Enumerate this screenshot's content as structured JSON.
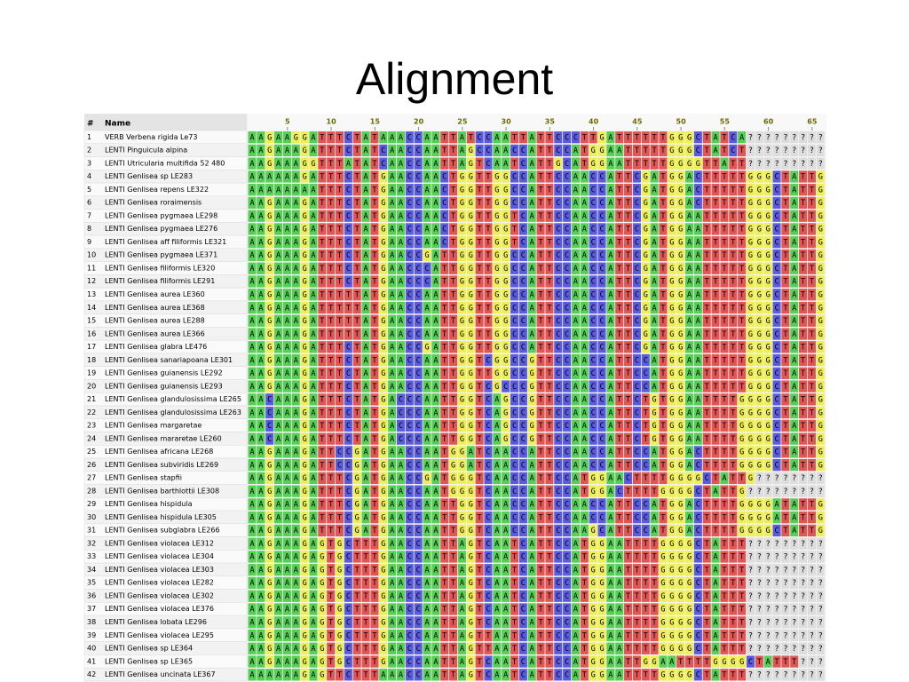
{
  "header": {
    "title": "Alignment"
  },
  "table": {
    "columns": [
      "#",
      "Name"
    ],
    "ruler": [
      5,
      10,
      15,
      20,
      25,
      30,
      35,
      40,
      45,
      50,
      55,
      60,
      65
    ],
    "rows": [
      {
        "num": "1",
        "name": "VERB Verbena rigida Le73",
        "sequence": "AAGAAGGATTTCTATAAACCAATTATCCAATTATTCCCTTGATTTTTTGGGCTATCA?????????"
      },
      {
        "num": "2",
        "name": "LENTI Pinguicula alpina",
        "sequence": "AAGAAAGATTTCTATCAACCAATTAGCCAACCATTCCATGGAATTTTTGGGCTATCT?????????"
      },
      {
        "num": "3",
        "name": "LENTI Utricularia multifida 52 480",
        "sequence": "AAGAAAGGTTTATATCAACCAATTAGTCAATCATTGCATGGAATTTTTGGGGTTATT?????????"
      },
      {
        "num": "4",
        "name": "LENTI Genlisea sp  LE283",
        "sequence": "AAAAAAGATTTCTATGAACCAACTGGTTGGCCATTCCAACCATTCGATGGACTTTTTGGGCTATTG"
      },
      {
        "num": "5",
        "name": "LENTI Genlisea repens LE322",
        "sequence": "AAAAAAAATTTCTATGAACCAACTGGTTGGCCATTCCAACCATTCGATGGACTTTTTGGGCTATTG"
      },
      {
        "num": "6",
        "name": "LENTI Genlisea roraimensis",
        "sequence": "AAGAAAGATTTCTATGAACCAACTGGTTGGCCATTCCAACCATTCGATGGACTTTTTGGGCTATTG"
      },
      {
        "num": "7",
        "name": "LENTI Genlisea pygmaea LE298",
        "sequence": "AAGAAAGATTTCTATGAACCAACTGGTTGGTCATTCCAACCATTCGATGGAATTTTTGGGCTATTG"
      },
      {
        "num": "8",
        "name": "LENTI Genlisea pygmaea LE276",
        "sequence": "AAGAAAGATTTCTATGAACCAACTGGTTGGTCATTCCAACCATTCGATGGAATTTTTGGGCTATTG"
      },
      {
        "num": "9",
        "name": "LENTI Genlisea aff  filiformis LE321",
        "sequence": "AAGAAAGATTTCTATGAACCAACTGGTTGGTCATTCCAACCATTCGATGGAATTTTTGGGCTATTG"
      },
      {
        "num": "10",
        "name": "LENTI Genlisea pygmaea LE371",
        "sequence": "AAGAAAGATTTCTATGAACCGATTGGTTGGCCATTCCAACCATTCGATGGAATTTTTGGGCTATTG"
      },
      {
        "num": "11",
        "name": "LENTI Genlisea filiformis LE320",
        "sequence": "AAGAAAGATTTCTATGAACCCATTGGTTGGCCATTCCAACCATTCGATGGAATTTTTGGGCTATTG"
      },
      {
        "num": "12",
        "name": "LENTI Genlisea filiformis LE291",
        "sequence": "AAGAAAGATTTCTATGAACCCATTGGTTGGCCATTCCAACCATTCGATGGAATTTTTGGGCTATTG"
      },
      {
        "num": "13",
        "name": "LENTI Genlisea aurea LE360",
        "sequence": "AAGAAAGATTTTTATGAACCAATTGGTTGGCCATTCCAACCATTCGATGGAATTTTTGGGCTATTG"
      },
      {
        "num": "14",
        "name": "LENTI Genlisea aurea LE368",
        "sequence": "AAGAAAGATTTTTATGAACCAATTGGTTGGCCATTCCAACCATTCGATGGAATTTTTGGGCTATTG"
      },
      {
        "num": "15",
        "name": "LENTI Genlisea aurea LE288",
        "sequence": "AAGAAAGATTTTTATGAACCAATTGGTTGGCCATTCCAACCATTCGATGGAATTTTTGGGCTATTG"
      },
      {
        "num": "16",
        "name": "LENTI Genlisea aurea LE366",
        "sequence": "AAGAAAGATTTTTATGAACCAATTGGTTGGCCATTCCAACCATTCGATGGAATTTTTGGGCTATTG"
      },
      {
        "num": "17",
        "name": "LENTI Genlisea glabra LE476",
        "sequence": "AAGAAAGATTTCTATGAACCGATTGGTTGGCCATTCCAACCATTCGATGGAATTTTTGGGCTATTG"
      },
      {
        "num": "18",
        "name": "LENTI Genlisea sanariapoana LE301",
        "sequence": "AAGAAAGATTTCTATGAACCAATTGGTCGGCCGTTCCAACCATTCCATGGAATTTTTGGGCTATTG"
      },
      {
        "num": "19",
        "name": "LENTI Genlisea guianensis LE292",
        "sequence": "AAGAAAGATTTCTATGAACCAATTGGTTGGCCGTTCCAACCATTCCATGGAATTTTTGGGCTATTG"
      },
      {
        "num": "20",
        "name": "LENTI Genlisea guianensis LE293",
        "sequence": "AAGAAAGATTTCTATGAACCAATTGGTCGCCCGTTCCAACCATTCCATGGAATTTTTGGGCTATTG"
      },
      {
        "num": "21",
        "name": "LENTI Genlisea glandulosissima LE265",
        "sequence": "AACAAAGATTTCTATGACCCAATTGGTCAGCCGTTCCAACCATTCTGTGGAATTTTGGGGCTATTG"
      },
      {
        "num": "22",
        "name": "LENTI Genlisea glandulosissima LE263",
        "sequence": "AACAAAGATTTCTATGACCCAATTGGTCAGCCGTTCCAACCATTCTGTGGAATTTTGGGGCTATTG"
      },
      {
        "num": "23",
        "name": "LENTI Genlisea margaretae",
        "sequence": "AACAAAGATTTCTATGACCCAATTGGTCAGCCGTTCCAACCATTCTGTGGAATTTTGGGGCTATTG"
      },
      {
        "num": "24",
        "name": "LENTI Genlisea mararetae LE260",
        "sequence": "AACAAAGATTTCTATGACCCAATTGGTCAGCCGTTCCAACCATTCTGTGGAATTTTGGGGCTATTG"
      },
      {
        "num": "25",
        "name": "LENTI Genlisea africana LE268",
        "sequence": "AAGAAAGATTCCGATGAACCAATGGATCAACCATTCCAACCATTCCATGGACTTTTGGGGCTATTG"
      },
      {
        "num": "26",
        "name": "LENTI Genlisea subviridis LE269",
        "sequence": "AAGAAAGATTCCGATGAACCAATGGATCAACCATTCCAACCATTCCATGGACTTTTGGGGCTATTG"
      },
      {
        "num": "27",
        "name": "LENTI Genlisea stapfii",
        "sequence": "AAGAAAGATTTCGATGAACCGATGGGTCAACCATTCCATGGAACTTTTGGGGCTATTG????????"
      },
      {
        "num": "28",
        "name": "LENTI Genlisea barthlottii LE308",
        "sequence": "AAGAAAGATTTCGATGAACCAATGGGTCAACCATTCCATGGACTTTTGGGGCTATTG?????????"
      },
      {
        "num": "29",
        "name": "LENTI Genlisea hispidula",
        "sequence": "AAGAAAGATTTCGATGAACCAATTGGTCAACCATTCCAACCATTCCATGGACTTTTGGGGATATTG"
      },
      {
        "num": "30",
        "name": "LENTI Genlisea hispidula LE305",
        "sequence": "AAGAAAGATTTCGATGAACCAATTGGTCAACCATTCCAACCATTCCATGGACTTTTGGGGATATTG"
      },
      {
        "num": "31",
        "name": "LENTI Genlisea subglabra LE266",
        "sequence": "AAGAAAGATTTCGATGAACCAATTGGTCAACCATTCCAAGCATTCCATGGACTTTTGGGGCTATTG"
      },
      {
        "num": "32",
        "name": "LENTI Genlisea violacea LE312",
        "sequence": "AAGAAAGAGTGCTTTGAACCAATTAGTCAATCATTCCATGGAATTTTGGGGCTATTT?????????"
      },
      {
        "num": "33",
        "name": "LENTI Genlisea violacea LE304",
        "sequence": "AAGAAAGAGTGCTTTGAACCAATTAGTCAATCATTCCATGGAATTTTGGGGCTATTT?????????"
      },
      {
        "num": "34",
        "name": "LENTI Genlisea violacea LE303",
        "sequence": "AAGAAAGAGTGCTTTGAACCAATTAGTCAATCATTCCATGGAATTTTGGGGCTATTT?????????"
      },
      {
        "num": "35",
        "name": "LENTI Genlisea violacea LE282",
        "sequence": "AAGAAAGAGTGCTTTGAACCAATTAGTCAATCATTCCATGGAATTTTGGGGCTATTT?????????"
      },
      {
        "num": "36",
        "name": "LENTI Genlisea violacea LE302",
        "sequence": "AAGAAAGAGTGCTTTGAACCAATTAGTCAATCATTCCATGGAATTTTGGGGCTATTT?????????"
      },
      {
        "num": "37",
        "name": "LENTI Genlisea violacea LE376",
        "sequence": "AAGAAAGAGTGCTTTGAACCAATTAGTCAATCATTCCATGGAATTTTGGGGCTATTT?????????"
      },
      {
        "num": "38",
        "name": "LENTI Genlisea lobata LE296",
        "sequence": "AAGAAAGAGTGCTTTGAACCAATTAGTCAATCATTCCATGGAATTTTGGGGCTATTT?????????"
      },
      {
        "num": "39",
        "name": "LENTI Genlisea violacea LE295",
        "sequence": "AAGAAAGAGTGCTTTGAACCAATTAGTTAATCATTCCATGGAATTTTGGGGCTATTT?????????"
      },
      {
        "num": "40",
        "name": "LENTI Genlisea sp  LE364",
        "sequence": "AAGAAAGAGTGCTTTGAACCAATTAGTTAATCATTCCATGGAATTTTGGGGCTATTT?????????"
      },
      {
        "num": "41",
        "name": "LENTI Genlisea sp  LE365",
        "sequence": "AAGAAAGAGTGCTTTGAACCAATTAGTCAATCATTCCATGGAATTGGAATTTTGGGGCTATTT???"
      },
      {
        "num": "42",
        "name": "LENTI Genlisea uncinata LE367",
        "sequence": "AAAAAAGAGTTCTTTAAACCAATTAGTCAATCATTCCATGGAATTTTGGGGCTATTT?????????"
      }
    ]
  }
}
